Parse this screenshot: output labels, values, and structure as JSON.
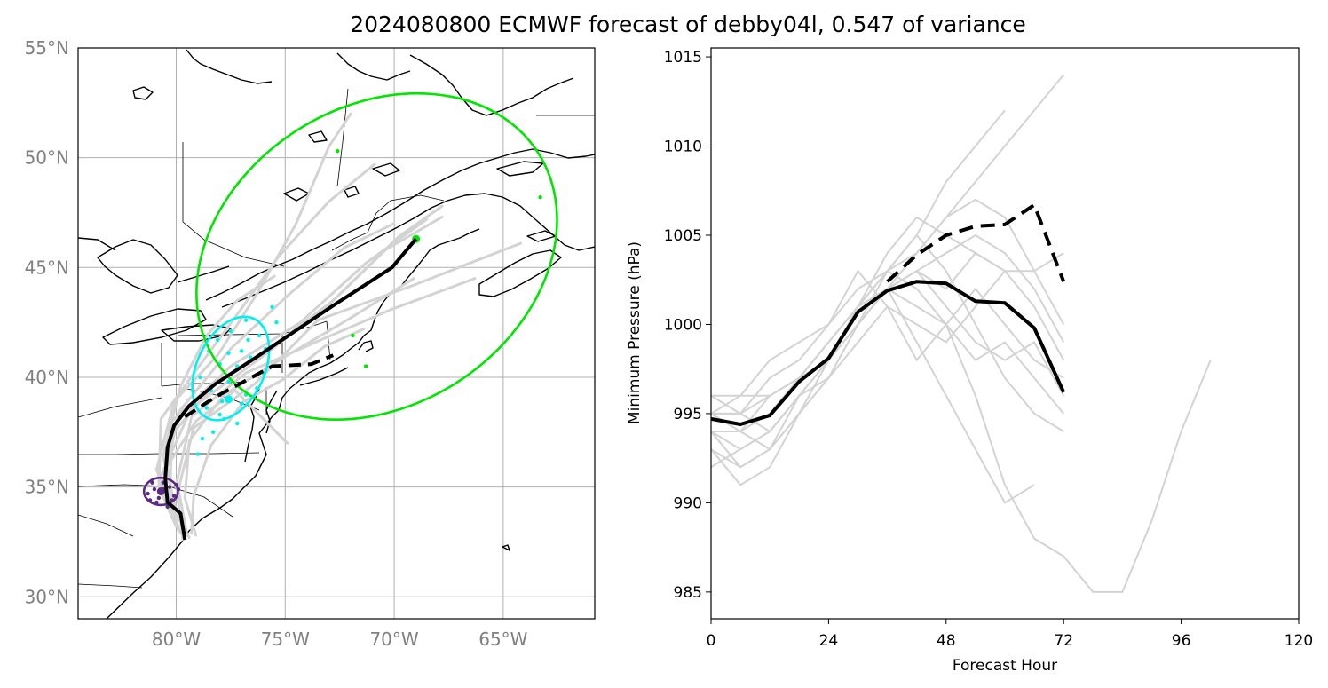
{
  "title": "2024080800 ECMWF forecast of debby04l, 0.547 of variance",
  "colors": {
    "ensemble": "#d3d3d3",
    "mean": "#000000",
    "coast": "#000000",
    "grid": "#b0b0b0",
    "ellipse_outer": "#00e600",
    "ellipse_mid": "#00f0f0",
    "ellipse_inner": "#5b2a86"
  },
  "chart_data": [
    {
      "type": "map",
      "xlabel": "",
      "ylabel": "",
      "lon_range": [
        -84.5,
        -60.8
      ],
      "lat_range": [
        29,
        55
      ],
      "lon_ticks": [
        -80,
        -75,
        -70,
        -65
      ],
      "lat_ticks": [
        30,
        35,
        40,
        45,
        50,
        55
      ],
      "lon_tick_labels": [
        "80°W",
        "75°W",
        "70°W",
        "65°W"
      ],
      "lat_tick_labels": [
        "30°N",
        "35°N",
        "40°N",
        "45°N",
        "50°N",
        "55°N"
      ],
      "grid": true,
      "mean_track": [
        [
          -79.6,
          32.6
        ],
        [
          -79.8,
          33.8
        ],
        [
          -80.4,
          34.3
        ],
        [
          -80.5,
          35.4
        ],
        [
          -80.4,
          36.8
        ],
        [
          -80.1,
          37.8
        ],
        [
          -79.4,
          38.7
        ],
        [
          -78.2,
          39.7
        ],
        [
          -76.5,
          40.8
        ],
        [
          -74.7,
          42.0
        ],
        [
          -72.9,
          43.2
        ],
        [
          -70.1,
          45.0
        ],
        [
          -69.0,
          46.3
        ]
      ],
      "dashed_track": [
        [
          -79.6,
          38.2
        ],
        [
          -78.2,
          39.1
        ],
        [
          -76.9,
          39.8
        ],
        [
          -75.6,
          40.5
        ],
        [
          -73.8,
          40.6
        ],
        [
          -72.8,
          41.0
        ]
      ],
      "ensemble_tracks": [
        [
          [
            -79.4,
            32.7
          ],
          [
            -80.3,
            34.3
          ],
          [
            -80.2,
            37.4
          ],
          [
            -78.3,
            39.6
          ],
          [
            -75.6,
            41.4
          ],
          [
            -72.8,
            43.5
          ],
          [
            -70.4,
            45.8
          ],
          [
            -67.8,
            47.3
          ]
        ],
        [
          [
            -79.8,
            32.9
          ],
          [
            -80.5,
            34.6
          ],
          [
            -80.3,
            37.9
          ],
          [
            -77.5,
            40.5
          ],
          [
            -74.3,
            42.5
          ],
          [
            -71.3,
            45.2
          ],
          [
            -68.5,
            47.2
          ]
        ],
        [
          [
            -80.0,
            33.2
          ],
          [
            -80.8,
            35.3
          ],
          [
            -79.3,
            38.6
          ],
          [
            -76.1,
            40.9
          ],
          [
            -72.9,
            43.4
          ],
          [
            -69.8,
            46.4
          ],
          [
            -67.8,
            47.8
          ]
        ],
        [
          [
            -79.1,
            32.8
          ],
          [
            -79.6,
            34.5
          ],
          [
            -79.4,
            37.1
          ],
          [
            -77.8,
            39.2
          ],
          [
            -74.9,
            41.0
          ],
          [
            -72.0,
            42.7
          ],
          [
            -69.1,
            44.5
          ]
        ],
        [
          [
            -80.1,
            33.5
          ],
          [
            -80.9,
            35.8
          ],
          [
            -80.1,
            38.9
          ],
          [
            -78.1,
            41.0
          ],
          [
            -76.3,
            43.8
          ],
          [
            -74.5,
            47.0
          ],
          [
            -73.0,
            50.5
          ],
          [
            -72.0,
            52.0
          ]
        ],
        [
          [
            -79.7,
            32.6
          ],
          [
            -80.0,
            35.1
          ],
          [
            -79.3,
            38.2
          ],
          [
            -76.8,
            40.2
          ],
          [
            -73.6,
            41.6
          ],
          [
            -70.1,
            43.1
          ],
          [
            -66.3,
            44.5
          ]
        ],
        [
          [
            -80.0,
            33.9
          ],
          [
            -80.6,
            36.4
          ],
          [
            -79.8,
            39.6
          ],
          [
            -78.6,
            41.9
          ],
          [
            -77.2,
            43.5
          ],
          [
            -75.5,
            44.6
          ]
        ],
        [
          [
            -79.3,
            32.9
          ],
          [
            -79.2,
            34.6
          ],
          [
            -78.4,
            36.9
          ],
          [
            -76.9,
            38.9
          ],
          [
            -75.1,
            39.9
          ],
          [
            -73.2,
            41.4
          ],
          [
            -71.4,
            42.2
          ]
        ],
        [
          [
            -80.2,
            33.6
          ],
          [
            -80.7,
            35.5
          ],
          [
            -79.1,
            38.0
          ],
          [
            -77.3,
            39.4
          ],
          [
            -74.9,
            37.0
          ]
        ],
        [
          [
            -79.9,
            33.0
          ],
          [
            -80.4,
            35.9
          ],
          [
            -79.9,
            38.4
          ],
          [
            -77.5,
            41.3
          ],
          [
            -74.8,
            43.8
          ],
          [
            -72.3,
            45.9
          ],
          [
            -70.0,
            47.0
          ]
        ],
        [
          [
            -79.5,
            32.8
          ],
          [
            -79.9,
            34.9
          ],
          [
            -79.2,
            37.7
          ],
          [
            -76.4,
            39.7
          ],
          [
            -73.5,
            42.6
          ],
          [
            -69.1,
            44.2
          ],
          [
            -64.2,
            46.1
          ]
        ],
        [
          [
            -80.0,
            33.2
          ],
          [
            -80.8,
            35.0
          ],
          [
            -80.7,
            38.1
          ],
          [
            -79.1,
            40.3
          ],
          [
            -77.1,
            43.0
          ],
          [
            -75.3,
            45.5
          ],
          [
            -73.0,
            48.0
          ],
          [
            -70.9,
            49.7
          ]
        ]
      ],
      "ellipses": [
        {
          "color": "#00e600",
          "center": [
            -70.8,
            45.5
          ],
          "radii_deg": [
            8.8,
            6.8
          ],
          "rotation_deg": -33,
          "center_point": [
            -69.0,
            46.3
          ]
        },
        {
          "color": "#00f0f0",
          "center": [
            -77.5,
            40.4
          ],
          "radii_deg": [
            1.55,
            2.5
          ],
          "rotation_deg": 25,
          "center_point": [
            -77.6,
            39.0
          ]
        },
        {
          "color": "#5b2a86",
          "center": [
            -80.7,
            34.8
          ],
          "radii_deg": [
            0.78,
            0.62
          ],
          "rotation_deg": 0,
          "center_point": [
            -80.7,
            34.8
          ]
        }
      ],
      "outer_points": [
        [
          -72.6,
          50.3
        ],
        [
          -63.3,
          48.2
        ],
        [
          -71.9,
          41.9
        ],
        [
          -71.3,
          40.5
        ]
      ],
      "mid_points": [
        [
          -78.1,
          41.7
        ],
        [
          -77.6,
          41.1
        ],
        [
          -76.8,
          42.6
        ],
        [
          -75.6,
          43.2
        ],
        [
          -75.4,
          42.5
        ],
        [
          -76.2,
          41.9
        ],
        [
          -77.0,
          41.2
        ],
        [
          -78.5,
          41.2
        ],
        [
          -78.0,
          40.6
        ],
        [
          -77.2,
          40.5
        ],
        [
          -76.6,
          40.9
        ],
        [
          -76.0,
          40.2
        ],
        [
          -78.9,
          40.0
        ],
        [
          -78.4,
          39.4
        ],
        [
          -77.6,
          39.8
        ],
        [
          -76.8,
          39.2
        ],
        [
          -77.9,
          38.9
        ],
        [
          -77.0,
          38.8
        ],
        [
          -76.3,
          39.5
        ],
        [
          -78.6,
          38.6
        ],
        [
          -78.0,
          38.3
        ],
        [
          -77.2,
          37.9
        ],
        [
          -78.8,
          37.2
        ],
        [
          -79.0,
          36.5
        ],
        [
          -78.3,
          37.5
        ],
        [
          -77.8,
          38.1
        ],
        [
          -76.7,
          41.7
        ],
        [
          -75.9,
          41.3
        ],
        [
          -77.5,
          42.1
        ]
      ],
      "inner_points": [
        [
          -81.1,
          35.2
        ],
        [
          -80.5,
          35.4
        ],
        [
          -80.0,
          35.1
        ],
        [
          -81.3,
          34.7
        ],
        [
          -80.9,
          34.3
        ],
        [
          -80.4,
          34.1
        ],
        [
          -80.1,
          34.6
        ],
        [
          -80.6,
          34.9
        ],
        [
          -81.0,
          34.9
        ],
        [
          -80.3,
          35.0
        ],
        [
          -80.8,
          34.5
        ],
        [
          -80.2,
          34.4
        ],
        [
          -80.6,
          35.2
        ],
        [
          -79.9,
          34.9
        ],
        [
          -81.2,
          34.4
        ]
      ]
    },
    {
      "type": "line",
      "xlabel": "Forecast Hour",
      "ylabel": "Minimum Pressure (hPa)",
      "xlim": [
        0,
        120
      ],
      "ylim": [
        983.5,
        1015.5
      ],
      "x_ticks": [
        0,
        24,
        48,
        72,
        96,
        120
      ],
      "y_ticks": [
        985,
        990,
        995,
        1000,
        1005,
        1010,
        1015
      ],
      "grid": false,
      "mean": {
        "x": [
          0,
          6,
          12,
          18,
          24,
          30,
          36,
          42,
          48,
          54,
          60,
          66,
          72
        ],
        "values": [
          994.7,
          994.4,
          994.9,
          996.8,
          998.1,
          1000.7,
          1001.9,
          1002.4,
          1002.3,
          1001.3,
          1001.2,
          999.8,
          996.2
        ]
      },
      "dashed": {
        "x": [
          36,
          42,
          48,
          54,
          60,
          66,
          72
        ],
        "values": [
          1002.4,
          1003.9,
          1005.0,
          1005.5,
          1005.6,
          1006.7,
          1002.4
        ]
      },
      "ensemble": [
        {
          "x": [
            0,
            6,
            12,
            18,
            24,
            30,
            36,
            42,
            48,
            54,
            60,
            66,
            72
          ],
          "values": [
            995,
            994,
            996,
            997,
            998,
            1000,
            1002,
            1004,
            1006,
            1008,
            1010,
            1012,
            1014
          ]
        },
        {
          "x": [
            0,
            6,
            12,
            18,
            24,
            30,
            36,
            42,
            48,
            54,
            60
          ],
          "values": [
            994,
            992,
            993,
            996,
            998,
            1001,
            1003,
            1005,
            1008,
            1010,
            1012
          ]
        },
        {
          "x": [
            0,
            6,
            12,
            18,
            24,
            30,
            36,
            42,
            48,
            54,
            60,
            66,
            72,
            78,
            84,
            90,
            96,
            102
          ],
          "values": [
            995,
            994,
            995,
            997,
            999,
            1001,
            1003,
            1002,
            1000,
            996,
            991,
            988,
            987,
            985,
            985,
            989,
            994,
            998
          ]
        },
        {
          "x": [
            0,
            6,
            12,
            18,
            24,
            30,
            36,
            42,
            48,
            54,
            60,
            66
          ],
          "values": [
            996,
            996,
            996,
            997,
            999,
            1001,
            1002,
            999,
            996,
            993,
            990,
            991
          ]
        },
        {
          "x": [
            0,
            6,
            12,
            18,
            24,
            30,
            36,
            42,
            48,
            54,
            60,
            66,
            72
          ],
          "values": [
            993,
            991,
            992,
            995,
            998,
            1001,
            1004,
            1006,
            1005,
            1004,
            1003,
            1001,
            998
          ]
        },
        {
          "x": [
            0,
            6,
            12,
            18,
            24,
            30,
            36,
            42,
            48,
            54,
            60,
            66,
            72
          ],
          "values": [
            995,
            995,
            994,
            996,
            998,
            1000,
            1003,
            1005,
            1003,
            1000,
            997,
            995,
            994
          ]
        },
        {
          "x": [
            0,
            6,
            12,
            18,
            24,
            30,
            36,
            42,
            48,
            54,
            60,
            66,
            72
          ],
          "values": [
            994,
            993,
            994,
            996,
            997,
            999,
            1001,
            1000,
            999,
            1001,
            1003,
            1003,
            1004
          ]
        },
        {
          "x": [
            0,
            6,
            12,
            18,
            24,
            30,
            36,
            42,
            48,
            54,
            60,
            66,
            72
          ],
          "values": [
            996,
            995,
            997,
            998,
            1000,
            1002,
            1003,
            1004,
            1006,
            1007,
            1006,
            1003,
            1000
          ]
        },
        {
          "x": [
            0,
            6,
            12,
            18,
            24,
            30,
            36,
            42,
            48,
            54,
            60,
            66,
            72
          ],
          "values": [
            992,
            993,
            994,
            996,
            998,
            1000,
            1002,
            1001,
            1000,
            998,
            999,
            997,
            995
          ]
        },
        {
          "x": [
            0,
            6,
            12,
            18,
            24,
            30,
            36,
            42,
            48,
            54,
            60
          ],
          "values": [
            995,
            995,
            996,
            997,
            999,
            1001,
            1002,
            1003,
            1002,
            1004,
            1003
          ]
        },
        {
          "x": [
            0,
            6,
            12,
            18,
            24,
            30,
            36,
            42,
            48,
            54,
            60,
            66,
            72
          ],
          "values": [
            994,
            994,
            993,
            995,
            997,
            1000,
            1002,
            1003,
            1001,
            999,
            998,
            999,
            996
          ]
        },
        {
          "x": [
            0,
            6,
            12,
            18,
            24,
            30,
            36,
            42,
            48,
            54,
            60,
            66,
            72
          ],
          "values": [
            993,
            992,
            993,
            995,
            997,
            1000,
            1002,
            1003,
            1004,
            1005,
            1004,
            1002,
            999
          ]
        },
        {
          "x": [
            0,
            6,
            12,
            18,
            24,
            30,
            36,
            42,
            48,
            54,
            60,
            66,
            72
          ],
          "values": [
            995,
            996,
            998,
            999,
            1000,
            1003,
            1001,
            998,
            1000,
            1002,
            1000,
            998,
            997
          ]
        }
      ]
    }
  ]
}
